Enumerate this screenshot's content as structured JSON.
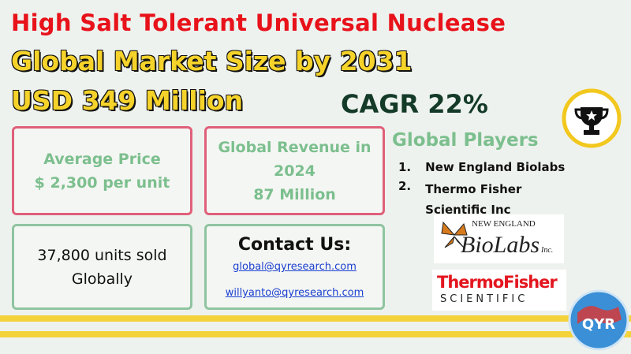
{
  "header": {
    "title": "High Salt Tolerant Universal Nuclease",
    "line1": "Global Market Size by 2031",
    "line2": "USD 349 Million",
    "cagr": "CAGR 22%"
  },
  "boxes": {
    "price": {
      "label": "Average Price",
      "value": "$ 2,300 per unit"
    },
    "revenue": {
      "label": "Global Revenue in 2024",
      "value": "87 Million"
    },
    "units": "37,800 units sold Globally",
    "contact": {
      "label": "Contact Us:",
      "emails": [
        "global@qyresearch.com",
        "willyanto@qyresearch.com"
      ]
    }
  },
  "players": {
    "title": "Global Players",
    "items": [
      {
        "num": "1.",
        "name": "New England Biolabs"
      },
      {
        "num": "2.",
        "name": "Thermo Fisher Scientific Inc"
      }
    ]
  },
  "logos": {
    "neb_top": "NEW ENGLAND",
    "neb_main": "BioLabs",
    "neb_inc": "Inc.",
    "thermo": "ThermoFisher",
    "thermo_sub": "SCIENTIFIC",
    "qyr": "QYR"
  }
}
